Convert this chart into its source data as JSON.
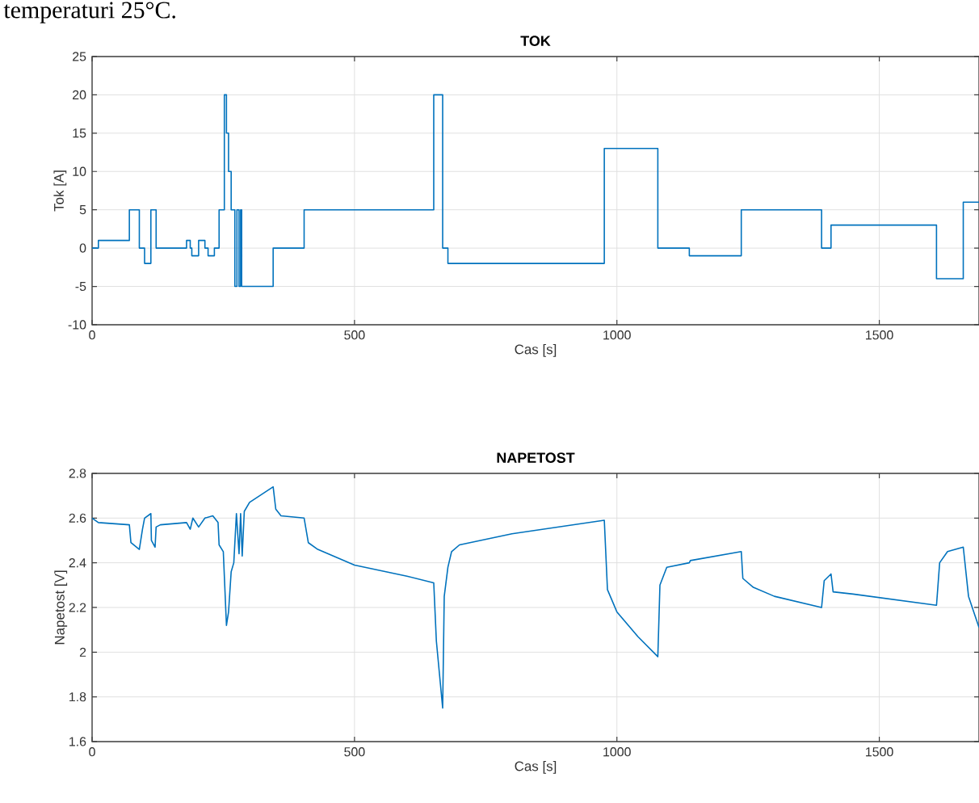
{
  "chart_data": [
    {
      "type": "step",
      "title": "TOK",
      "xlabel": "Cas [s]",
      "ylabel": "Tok [A]",
      "annotations": [
        "temperaturi 25°C."
      ],
      "grid": true,
      "xlim": [
        0,
        1690
      ],
      "ylim": [
        -10,
        25
      ],
      "xticks": [
        0,
        500,
        1000,
        1500
      ],
      "yticks": [
        -10,
        -5,
        0,
        5,
        10,
        15,
        20,
        25
      ],
      "series": [
        {
          "color": "#0072bd",
          "x": [
            0,
            12,
            71,
            90,
            100,
            112,
            122,
            180,
            187,
            190,
            203,
            215,
            221,
            233,
            242,
            252,
            256,
            260,
            265,
            272,
            276,
            280,
            283,
            285,
            345,
            404,
            651,
            668,
            678,
            976,
            1078,
            1138,
            1237,
            1390,
            1408,
            1609,
            1660,
            1690
          ],
          "values": [
            0,
            1,
            5,
            0,
            -2,
            5,
            0,
            1,
            0,
            -1,
            1,
            0,
            -1,
            0,
            5,
            20,
            15,
            10,
            5,
            -5,
            5,
            -5,
            5,
            -5,
            0,
            5,
            20,
            0,
            -2,
            13,
            0,
            -1,
            5,
            0,
            3,
            -4,
            6,
            6
          ]
        }
      ]
    },
    {
      "type": "line",
      "title": "NAPETOST",
      "xlabel": "Cas [s]",
      "ylabel": "Napetost [V]",
      "grid": true,
      "xlim": [
        0,
        1690
      ],
      "ylim": [
        1.6,
        2.8
      ],
      "xticks": [
        0,
        500,
        1000,
        1500
      ],
      "yticks": [
        1.6,
        1.8,
        2,
        2.2,
        2.4,
        2.6,
        2.8
      ],
      "series": [
        {
          "color": "#0072bd",
          "x": [
            0,
            12,
            71,
            74,
            90,
            96,
            100,
            112,
            113,
            120,
            122,
            130,
            180,
            187,
            192,
            203,
            215,
            230,
            240,
            242,
            250,
            256,
            260,
            265,
            270,
            275,
            280,
            283,
            286,
            290,
            300,
            345,
            350,
            360,
            404,
            412,
            430,
            500,
            600,
            651,
            656,
            668,
            671,
            678,
            685,
            700,
            800,
            976,
            982,
            1000,
            1040,
            1078,
            1082,
            1095,
            1138,
            1140,
            1237,
            1240,
            1260,
            1300,
            1390,
            1395,
            1408,
            1412,
            1450,
            1609,
            1615,
            1630,
            1660,
            1670,
            1690
          ],
          "values": [
            2.6,
            2.58,
            2.57,
            2.49,
            2.46,
            2.55,
            2.6,
            2.62,
            2.5,
            2.47,
            2.56,
            2.57,
            2.58,
            2.55,
            2.6,
            2.56,
            2.6,
            2.61,
            2.58,
            2.48,
            2.45,
            2.12,
            2.18,
            2.36,
            2.4,
            2.62,
            2.44,
            2.62,
            2.43,
            2.63,
            2.67,
            2.74,
            2.64,
            2.61,
            2.6,
            2.49,
            2.46,
            2.39,
            2.34,
            2.31,
            2.05,
            1.75,
            2.25,
            2.38,
            2.45,
            2.48,
            2.53,
            2.59,
            2.28,
            2.18,
            2.07,
            1.98,
            2.3,
            2.38,
            2.4,
            2.41,
            2.45,
            2.33,
            2.29,
            2.25,
            2.2,
            2.32,
            2.35,
            2.27,
            2.26,
            2.21,
            2.4,
            2.45,
            2.47,
            2.25,
            2.11
          ]
        }
      ]
    }
  ]
}
